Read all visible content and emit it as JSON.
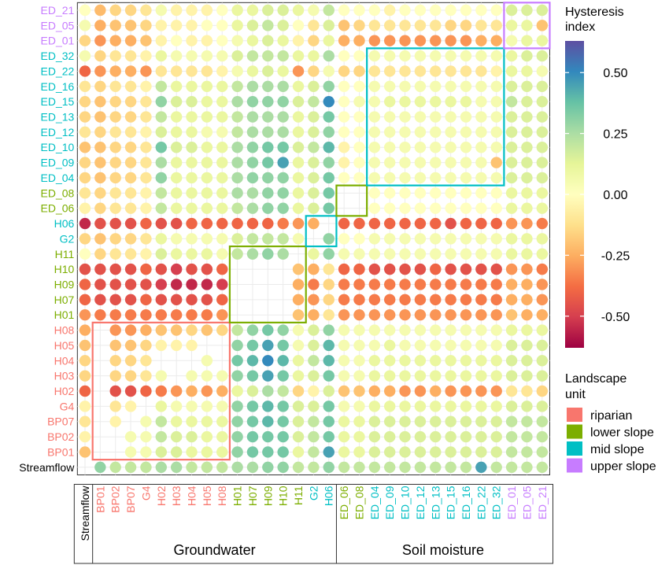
{
  "chart_data": {
    "type": "heatmap",
    "title": "",
    "xlabel": "",
    "ylabel": "",
    "x_categories": [
      "Streamflow",
      "BP01",
      "BP02",
      "BP07",
      "G4",
      "H02",
      "H03",
      "H04",
      "H05",
      "H08",
      "H01",
      "H07",
      "H09",
      "H10",
      "H11",
      "G2",
      "H06",
      "ED_06",
      "ED_08",
      "ED_04",
      "ED_09",
      "ED_10",
      "ED_12",
      "ED_13",
      "ED_15",
      "ED_16",
      "ED_22",
      "ED_32",
      "ED_01",
      "ED_05",
      "ED_21"
    ],
    "y_categories": [
      "ED_21",
      "ED_05",
      "ED_01",
      "ED_32",
      "ED_22",
      "ED_16",
      "ED_15",
      "ED_13",
      "ED_12",
      "ED_10",
      "ED_09",
      "ED_04",
      "ED_08",
      "ED_06",
      "H06",
      "G2",
      "H11",
      "H10",
      "H09",
      "H07",
      "H01",
      "H08",
      "H05",
      "H04",
      "H03",
      "H02",
      "G4",
      "BP07",
      "BP02",
      "BP01",
      "Streamflow"
    ],
    "category_unit": {
      "Streamflow": "none",
      "BP01": "riparian",
      "BP02": "riparian",
      "BP07": "riparian",
      "G4": "riparian",
      "H02": "riparian",
      "H03": "riparian",
      "H04": "riparian",
      "H05": "riparian",
      "H08": "riparian",
      "H01": "lower slope",
      "H07": "lower slope",
      "H09": "lower slope",
      "H10": "lower slope",
      "H11": "lower slope",
      "G2": "mid slope",
      "H06": "mid slope",
      "ED_06": "lower slope",
      "ED_08": "lower slope",
      "ED_04": "mid slope",
      "ED_09": "mid slope",
      "ED_10": "mid slope",
      "ED_12": "mid slope",
      "ED_13": "mid slope",
      "ED_15": "mid slope",
      "ED_16": "mid slope",
      "ED_22": "mid slope",
      "ED_32": "mid slope",
      "ED_01": "upper slope",
      "ED_05": "upper slope",
      "ED_21": "upper slope"
    },
    "groups": [
      {
        "label": "Groundwater",
        "from": "BP01",
        "to": "H06"
      },
      {
        "label": "Soil moisture",
        "from": "ED_06",
        "to": "ED_21"
      }
    ],
    "blocks": [
      {
        "unit": "riparian",
        "cols": [
          "BP01",
          "H08"
        ],
        "rows": [
          "BP01",
          "H08"
        ]
      },
      {
        "unit": "lower slope",
        "cols": [
          "H01",
          "H11"
        ],
        "rows": [
          "H01",
          "H11"
        ]
      },
      {
        "unit": "mid slope",
        "cols": [
          "G2",
          "H06"
        ],
        "rows": [
          "G2",
          "H06"
        ]
      },
      {
        "unit": "lower slope",
        "cols": [
          "ED_06",
          "ED_08"
        ],
        "rows": [
          "ED_06",
          "ED_08"
        ]
      },
      {
        "unit": "mid slope",
        "cols": [
          "ED_04",
          "ED_32"
        ],
        "rows": [
          "ED_04",
          "ED_32"
        ]
      },
      {
        "unit": "upper slope",
        "cols": [
          "ED_01",
          "ED_21"
        ],
        "rows": [
          "ED_01",
          "ED_21"
        ]
      }
    ],
    "row_values": {
      "ED_21": [
        0.0,
        -0.22,
        -0.15,
        -0.15,
        -0.1,
        0.05,
        -0.05,
        -0.05,
        -0.05,
        0.0,
        0.1,
        0.1,
        0.15,
        0.15,
        0.1,
        0.05,
        0.2,
        0.0,
        0.0,
        0.0,
        -0.05,
        0.0,
        0.0,
        0.0,
        0.0,
        0.0,
        0.0,
        0.0,
        0.15,
        0.15,
        0.15
      ],
      "ED_05": [
        0.05,
        -0.25,
        -0.2,
        -0.2,
        -0.15,
        -0.05,
        -0.05,
        -0.05,
        0.0,
        0.0,
        0.1,
        0.15,
        0.2,
        0.15,
        0.0,
        -0.1,
        0.15,
        -0.2,
        -0.15,
        -0.1,
        -0.1,
        -0.1,
        -0.1,
        -0.1,
        -0.15,
        -0.15,
        -0.1,
        -0.1,
        0.1,
        0.1,
        -0.2
      ],
      "ED_01": [
        -0.15,
        -0.3,
        -0.25,
        -0.25,
        -0.2,
        -0.05,
        0.0,
        -0.05,
        -0.05,
        0.0,
        0.05,
        0.1,
        0.15,
        0.1,
        -0.05,
        -0.15,
        0.1,
        -0.25,
        -0.25,
        -0.3,
        -0.3,
        -0.3,
        -0.3,
        -0.3,
        -0.3,
        -0.3,
        -0.25,
        -0.25,
        0.05,
        0.1,
        0.1
      ],
      "ED_32": [
        0.05,
        -0.15,
        -0.1,
        -0.1,
        -0.05,
        0.1,
        0.05,
        0.05,
        0.05,
        0.05,
        0.15,
        0.2,
        0.2,
        0.2,
        0.1,
        0.1,
        0.25,
        0.0,
        0.0,
        0.05,
        0.05,
        0.05,
        0.05,
        0.05,
        0.05,
        0.05,
        0.05,
        0.05,
        0.1,
        0.15,
        0.15
      ],
      "ED_22": [
        -0.4,
        -0.3,
        -0.25,
        -0.25,
        -0.3,
        -0.1,
        -0.1,
        -0.1,
        -0.1,
        -0.05,
        0.05,
        0.1,
        0.15,
        0.1,
        -0.3,
        -0.15,
        0.05,
        -0.15,
        -0.15,
        -0.1,
        -0.1,
        -0.1,
        -0.1,
        -0.1,
        -0.1,
        -0.1,
        -0.1,
        -0.05,
        0.1,
        0.1,
        0.05
      ],
      "ED_16": [
        -0.1,
        -0.15,
        -0.1,
        -0.1,
        -0.05,
        0.2,
        0.1,
        0.1,
        0.1,
        0.1,
        0.2,
        0.25,
        0.25,
        0.25,
        0.1,
        0.15,
        0.3,
        0.0,
        0.0,
        0.05,
        0.05,
        0.05,
        0.05,
        0.05,
        0.05,
        0.05,
        0.05,
        0.05,
        0.15,
        0.15,
        0.15
      ],
      "ED_15": [
        -0.15,
        -0.2,
        -0.15,
        -0.15,
        -0.1,
        0.3,
        0.15,
        0.15,
        0.1,
        0.1,
        0.25,
        0.3,
        0.3,
        0.3,
        0.15,
        0.2,
        0.5,
        0.0,
        0.05,
        0.05,
        0.1,
        0.1,
        0.1,
        0.1,
        0.1,
        0.1,
        0.05,
        0.05,
        0.2,
        0.15,
        0.15
      ],
      "ED_13": [
        -0.15,
        -0.2,
        -0.15,
        -0.15,
        -0.1,
        0.2,
        0.1,
        0.1,
        0.1,
        0.1,
        0.2,
        0.25,
        0.25,
        0.25,
        0.1,
        0.15,
        0.35,
        0.0,
        0.0,
        0.05,
        0.05,
        0.05,
        0.05,
        0.05,
        0.05,
        0.05,
        0.05,
        0.05,
        0.15,
        0.15,
        0.15
      ],
      "ED_12": [
        -0.1,
        -0.15,
        -0.1,
        -0.1,
        -0.05,
        0.15,
        0.1,
        0.1,
        0.05,
        0.05,
        0.2,
        0.25,
        0.25,
        0.25,
        0.1,
        0.15,
        0.3,
        0.0,
        0.0,
        0.05,
        0.05,
        0.05,
        0.05,
        0.05,
        0.05,
        0.05,
        0.05,
        0.05,
        0.15,
        0.15,
        0.15
      ],
      "ED_10": [
        -0.2,
        -0.2,
        -0.15,
        -0.15,
        -0.1,
        0.35,
        0.15,
        0.15,
        0.1,
        0.1,
        0.25,
        0.3,
        0.35,
        0.35,
        0.15,
        0.2,
        0.4,
        -0.05,
        0.0,
        0.05,
        0.05,
        0.05,
        0.05,
        0.05,
        0.05,
        0.05,
        0.05,
        0.05,
        0.15,
        0.15,
        0.15
      ],
      "ED_09": [
        -0.15,
        -0.2,
        -0.15,
        -0.15,
        -0.1,
        0.25,
        0.1,
        0.1,
        0.1,
        0.1,
        0.25,
        0.3,
        0.35,
        0.45,
        0.1,
        0.15,
        0.3,
        -0.05,
        0.0,
        0.05,
        0.05,
        0.05,
        0.05,
        0.05,
        0.05,
        0.05,
        0.05,
        -0.2,
        0.15,
        0.15,
        0.15
      ],
      "ED_04": [
        -0.15,
        -0.2,
        -0.15,
        -0.15,
        -0.1,
        0.3,
        0.1,
        0.1,
        0.1,
        0.1,
        0.25,
        0.3,
        0.3,
        0.3,
        0.1,
        0.15,
        0.35,
        0.0,
        0.0,
        0.05,
        0.05,
        0.05,
        0.05,
        0.05,
        0.05,
        0.05,
        0.05,
        0.05,
        0.15,
        0.15,
        0.15
      ],
      "ED_08": [
        -0.1,
        -0.15,
        -0.1,
        -0.1,
        -0.05,
        0.2,
        0.1,
        0.1,
        0.1,
        0.1,
        0.25,
        0.25,
        0.3,
        0.3,
        0.1,
        0.15,
        0.35,
        0.0,
        0.0,
        0.0,
        0.0,
        0.0,
        0.0,
        0.0,
        0.0,
        0.0,
        0.0,
        0.0,
        0.1,
        0.1,
        0.1
      ],
      "ED_06": [
        -0.05,
        -0.15,
        -0.1,
        -0.1,
        -0.05,
        0.2,
        0.1,
        0.1,
        0.1,
        0.1,
        0.2,
        0.25,
        0.3,
        0.3,
        0.1,
        0.15,
        0.35,
        0.0,
        0.0,
        0.0,
        0.0,
        0.0,
        0.0,
        0.0,
        0.0,
        0.0,
        0.0,
        0.0,
        0.1,
        0.1,
        0.1
      ],
      "H06": [
        -0.55,
        -0.45,
        -0.45,
        -0.45,
        -0.4,
        -0.45,
        -0.45,
        -0.4,
        -0.4,
        -0.4,
        -0.4,
        -0.4,
        -0.4,
        -0.35,
        -0.3,
        -0.25,
        0.0,
        -0.4,
        -0.4,
        -0.4,
        -0.4,
        -0.4,
        -0.4,
        -0.4,
        -0.45,
        -0.4,
        -0.4,
        -0.4,
        -0.3,
        -0.3,
        -0.35
      ],
      "G2": [
        -0.15,
        -0.2,
        -0.15,
        -0.15,
        -0.1,
        0.1,
        0.05,
        0.05,
        0.05,
        0.05,
        0.15,
        0.2,
        0.2,
        0.2,
        0.05,
        0.0,
        0.3,
        0.0,
        0.0,
        0.05,
        0.05,
        0.05,
        0.05,
        0.05,
        0.05,
        0.05,
        0.05,
        0.05,
        0.1,
        0.1,
        0.1
      ],
      "H11": [
        0.0,
        -0.15,
        -0.1,
        -0.1,
        -0.05,
        0.15,
        0.1,
        0.1,
        0.1,
        0.05,
        0.2,
        0.25,
        0.3,
        0.25,
        0.0,
        0.1,
        0.3,
        0.05,
        0.05,
        0.05,
        0.05,
        0.05,
        0.05,
        0.05,
        0.05,
        0.05,
        0.05,
        0.05,
        0.1,
        0.1,
        0.1
      ],
      "H10": [
        -0.45,
        -0.45,
        -0.45,
        -0.45,
        -0.4,
        -0.45,
        -0.5,
        -0.45,
        -0.45,
        -0.4,
        0.0,
        0.0,
        0.0,
        0.0,
        -0.2,
        -0.25,
        -0.1,
        -0.4,
        -0.4,
        -0.45,
        -0.45,
        -0.45,
        -0.45,
        -0.4,
        -0.45,
        -0.45,
        -0.45,
        -0.45,
        -0.3,
        -0.3,
        -0.35
      ],
      "H09": [
        -0.4,
        -0.45,
        -0.45,
        -0.45,
        -0.45,
        -0.5,
        -0.55,
        -0.55,
        -0.55,
        -0.5,
        0.0,
        0.0,
        0.0,
        0.0,
        -0.25,
        -0.35,
        -0.15,
        -0.35,
        -0.35,
        -0.35,
        -0.35,
        -0.35,
        -0.35,
        -0.35,
        -0.35,
        -0.35,
        -0.35,
        -0.35,
        -0.25,
        -0.25,
        -0.3
      ],
      "H07": [
        -0.4,
        -0.45,
        -0.45,
        -0.45,
        -0.4,
        -0.45,
        -0.45,
        -0.45,
        -0.45,
        -0.4,
        0.0,
        0.0,
        0.0,
        0.0,
        -0.25,
        -0.3,
        -0.15,
        -0.35,
        -0.35,
        -0.35,
        -0.35,
        -0.35,
        -0.35,
        -0.35,
        -0.35,
        -0.35,
        -0.35,
        -0.35,
        -0.25,
        -0.25,
        -0.3
      ],
      "H01": [
        -0.3,
        -0.35,
        -0.35,
        -0.35,
        -0.35,
        -0.35,
        -0.35,
        -0.35,
        -0.35,
        -0.3,
        0.0,
        0.0,
        0.0,
        0.0,
        -0.2,
        -0.25,
        -0.1,
        -0.3,
        -0.3,
        -0.3,
        -0.3,
        -0.3,
        -0.3,
        -0.3,
        -0.3,
        -0.3,
        -0.3,
        -0.3,
        -0.2,
        -0.25,
        -0.25
      ],
      "H08": [
        -0.25,
        0.0,
        -0.3,
        -0.3,
        -0.25,
        -0.2,
        -0.2,
        -0.15,
        -0.2,
        -0.15,
        0.2,
        0.3,
        0.35,
        0.3,
        0.05,
        0.15,
        0.3,
        0.05,
        0.05,
        0.05,
        0.05,
        0.05,
        0.05,
        0.05,
        0.05,
        0.05,
        0.05,
        0.05,
        0.1,
        0.1,
        0.1
      ],
      "H05": [
        -0.2,
        0.0,
        -0.2,
        -0.2,
        -0.15,
        -0.05,
        -0.05,
        -0.05,
        0.0,
        0.0,
        0.3,
        0.35,
        0.45,
        0.35,
        0.05,
        0.15,
        0.4,
        0.05,
        0.05,
        0.05,
        0.1,
        0.05,
        0.05,
        0.05,
        0.05,
        0.05,
        0.05,
        0.05,
        0.15,
        0.15,
        0.15
      ],
      "H04": [
        -0.15,
        0.0,
        -0.15,
        -0.15,
        -0.1,
        0.0,
        0.0,
        0.0,
        0.05,
        0.0,
        0.35,
        0.4,
        0.5,
        0.4,
        0.1,
        0.2,
        0.4,
        0.05,
        0.05,
        0.1,
        0.1,
        0.1,
        0.1,
        0.1,
        0.1,
        0.1,
        0.1,
        0.1,
        0.15,
        0.15,
        0.15
      ],
      "H03": [
        -0.15,
        0.0,
        -0.15,
        -0.15,
        -0.1,
        0.05,
        0.0,
        0.05,
        0.05,
        0.05,
        0.3,
        0.35,
        0.45,
        0.35,
        0.1,
        0.15,
        0.35,
        0.05,
        0.05,
        0.1,
        0.1,
        0.1,
        0.1,
        0.1,
        0.1,
        0.1,
        0.1,
        0.1,
        0.15,
        0.15,
        0.15
      ],
      "H02": [
        -0.4,
        0.0,
        -0.45,
        -0.45,
        -0.4,
        -0.35,
        -0.3,
        -0.25,
        -0.3,
        -0.25,
        0.1,
        0.15,
        0.25,
        0.2,
        -0.15,
        -0.05,
        0.15,
        -0.2,
        -0.2,
        -0.25,
        -0.25,
        -0.3,
        -0.3,
        -0.25,
        -0.3,
        -0.3,
        -0.3,
        -0.3,
        -0.1,
        -0.1,
        -0.15
      ],
      "G4": [
        -0.05,
        0.0,
        -0.1,
        -0.05,
        0.0,
        0.1,
        0.05,
        0.05,
        0.05,
        0.05,
        0.3,
        0.35,
        0.4,
        0.35,
        0.15,
        0.15,
        0.35,
        0.05,
        0.05,
        0.1,
        0.1,
        0.1,
        0.1,
        0.1,
        0.1,
        0.1,
        0.1,
        0.1,
        0.15,
        0.15,
        0.15
      ],
      "BP07": [
        -0.1,
        0.0,
        -0.05,
        0.0,
        0.05,
        0.2,
        0.1,
        0.1,
        0.1,
        0.1,
        0.3,
        0.35,
        0.4,
        0.35,
        0.15,
        0.2,
        0.35,
        0.1,
        0.1,
        0.15,
        0.15,
        0.15,
        0.15,
        0.15,
        0.15,
        0.15,
        0.15,
        0.15,
        0.2,
        0.2,
        0.2
      ],
      "BP02": [
        -0.05,
        0.0,
        0.0,
        0.05,
        0.05,
        0.2,
        0.15,
        0.15,
        0.1,
        0.1,
        0.3,
        0.35,
        0.35,
        0.35,
        0.15,
        0.2,
        0.35,
        0.1,
        0.1,
        0.15,
        0.15,
        0.15,
        0.15,
        0.15,
        0.15,
        0.15,
        0.15,
        0.15,
        0.2,
        0.2,
        0.2
      ],
      "BP01": [
        -0.2,
        0.0,
        0.0,
        0.05,
        0.05,
        0.15,
        0.15,
        0.1,
        0.1,
        0.1,
        0.3,
        0.35,
        0.35,
        0.35,
        0.1,
        0.2,
        0.45,
        0.1,
        0.1,
        0.15,
        0.15,
        0.15,
        0.15,
        0.15,
        0.15,
        0.15,
        0.15,
        0.15,
        0.2,
        0.2,
        0.2
      ],
      "Streamflow": [
        0.0,
        0.3,
        0.2,
        0.2,
        0.2,
        0.25,
        0.25,
        0.2,
        0.2,
        0.2,
        0.25,
        0.25,
        0.3,
        0.3,
        0.2,
        0.2,
        0.3,
        0.2,
        0.2,
        0.2,
        0.2,
        0.2,
        0.2,
        0.2,
        0.2,
        0.2,
        0.45,
        0.2,
        0.2,
        0.2,
        0.2
      ]
    },
    "colorbar": {
      "title": "Hysteresis index",
      "title_lines": [
        "Hysteresis",
        "index"
      ],
      "range": [
        -0.63,
        0.63
      ],
      "ticks": [
        0.5,
        0.25,
        0.0,
        -0.25,
        -0.5
      ],
      "tick_labels": [
        "0.50",
        "0.25",
        "0.00",
        "-0.25",
        "-0.50"
      ],
      "palette": "Spectral",
      "stops": [
        "#9e0142",
        "#d53e4f",
        "#f46d43",
        "#fdae61",
        "#fee08b",
        "#ffffbf",
        "#e6f598",
        "#abdda4",
        "#66c2a5",
        "#3288bd",
        "#5e4fa2"
      ]
    },
    "legend": {
      "title": "Landscape unit",
      "title_lines": [
        "Landscape",
        "unit"
      ],
      "placement": "right",
      "items": [
        {
          "label": "riparian",
          "color": "#f8766d"
        },
        {
          "label": "lower slope",
          "color": "#7cae00"
        },
        {
          "label": "mid slope",
          "color": "#00bfc4"
        },
        {
          "label": "upper slope",
          "color": "#c77cff"
        }
      ]
    },
    "grid": true
  }
}
